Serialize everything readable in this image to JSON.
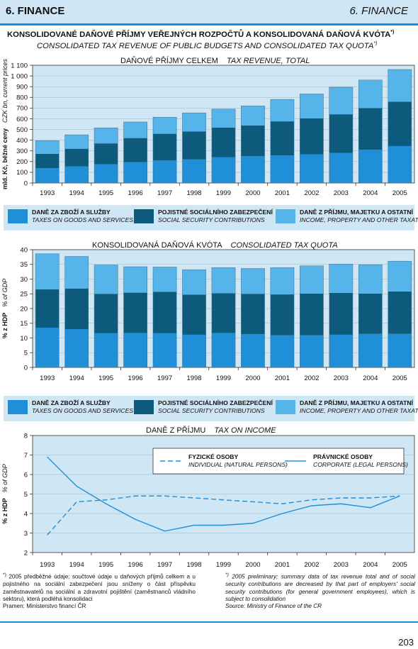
{
  "header": {
    "left": "6. FINANCE",
    "right": "6. FINANCE"
  },
  "title": {
    "cz": "KONSOLIDOVANÉ DAŇOVÉ PŘÍJMY VEŘEJNÝCH ROZPOČTŮ A KONSOLIDOVANÁ DAŇOVÁ KVÓTA",
    "en": "CONSOLIDATED TAX REVENUE OF PUBLIC BUDGETS AND CONSOLIDATED TAX QUOTA",
    "mark": "*)"
  },
  "colors": {
    "goods": "#1f8fd8",
    "social": "#0e5a7c",
    "income": "#55b5ea",
    "panel": "#cfe6f5",
    "accent": "#1a8fd8"
  },
  "legend": [
    {
      "cz": "DANĚ ZA ZBOŽÍ A SLUŽBY",
      "en": "TAXES ON GOODS AND SERVICES"
    },
    {
      "cz": "POJISTNÉ SOCIÁLNÍHO ZABEZPEČENÍ",
      "en": "SOCIAL SECURITY CONTRIBUTIONS"
    },
    {
      "cz": "DANĚ Z PŘÍJMU, MAJETKU A OSTATNÍ",
      "en": "INCOME, PROPERTY AND OTHER TAXATION"
    }
  ],
  "chart_data": [
    {
      "type": "bar",
      "stacked": true,
      "title_cz": "DAŇOVÉ PŘÍJMY CELKEM",
      "title_en": "TAX REVENUE, TOTAL",
      "ylabel_cz": "mld. Kč, běžné ceny",
      "ylabel_en": "CZK bn, current prices",
      "ylim": [
        0,
        1100
      ],
      "yticks": [
        "0",
        "100",
        "200",
        "300",
        "400",
        "500",
        "600",
        "700",
        "800",
        "900",
        "1 000",
        "1 100"
      ],
      "categories": [
        "1993",
        "1994",
        "1995",
        "1996",
        "1997",
        "1998",
        "1999",
        "2000",
        "2001",
        "2002",
        "2003",
        "2004",
        "2005"
      ],
      "series": [
        {
          "name": "DANĚ ZA ZBOŽÍ A SLUŽBY",
          "values": [
            138,
            155,
            175,
            195,
            210,
            220,
            240,
            250,
            258,
            268,
            280,
            310,
            345
          ]
        },
        {
          "name": "POJISTNÉ SOCIÁLNÍHO ZABEZPEČENÍ",
          "values": [
            135,
            165,
            195,
            225,
            250,
            262,
            278,
            288,
            318,
            336,
            362,
            390,
            415
          ]
        },
        {
          "name": "DANĚ Z PŘÍJMU, MAJETKU A OSTATNÍ",
          "values": [
            122,
            130,
            145,
            150,
            155,
            173,
            172,
            182,
            205,
            228,
            253,
            262,
            300
          ]
        }
      ]
    },
    {
      "type": "bar",
      "stacked": true,
      "title_cz": "KONSOLIDOVANÁ DAŇOVÁ KVÓTA",
      "title_en": "CONSOLIDATED TAX QUOTA",
      "ylabel_cz": "% z HDP",
      "ylabel_en": "% of GDP",
      "ylim": [
        0,
        40
      ],
      "yticks": [
        "0",
        "5",
        "10",
        "15",
        "20",
        "25",
        "30",
        "35",
        "40"
      ],
      "categories": [
        "1993",
        "1994",
        "1995",
        "1996",
        "1997",
        "1998",
        "1999",
        "2000",
        "2001",
        "2002",
        "2003",
        "2004",
        "2005"
      ],
      "series": [
        {
          "name": "DANĚ ZA ZBOŽÍ A SLUŽBY",
          "values": [
            13.5,
            13.0,
            11.6,
            11.7,
            11.6,
            11.1,
            11.7,
            11.3,
            10.9,
            10.9,
            11.1,
            11.4,
            11.4
          ]
        },
        {
          "name": "POJISTNÉ SOCIÁLNÍHO ZABEZPEČENÍ",
          "values": [
            13.0,
            13.8,
            13.4,
            13.7,
            14.1,
            13.6,
            13.5,
            13.7,
            13.9,
            14.2,
            14.2,
            13.7,
            14.4
          ]
        },
        {
          "name": "DANĚ Z PŘÍJMU, MAJETKU A OSTATNÍ",
          "values": [
            12.1,
            10.9,
            9.8,
            8.8,
            8.4,
            8.5,
            8.7,
            8.6,
            9.1,
            9.4,
            9.8,
            9.8,
            10.3
          ]
        }
      ]
    },
    {
      "type": "line",
      "title_cz": "DANĚ Z PŘÍJMU",
      "title_en": "TAX ON INCOME",
      "ylabel_cz": "% z HDP",
      "ylabel_en": "% of GDP",
      "ylim": [
        2,
        8
      ],
      "yticks": [
        "2",
        "3",
        "4",
        "5",
        "6",
        "7",
        "8"
      ],
      "x": [
        "1993",
        "1994",
        "1995",
        "1996",
        "1997",
        "1998",
        "1999",
        "2000",
        "2001",
        "2002",
        "2003",
        "2004",
        "2005"
      ],
      "series": [
        {
          "name_cz": "FYZICKÉ OSOBY",
          "name_en": "INDIVIDUAL (NATURAL PERSONS)",
          "style": "dashed",
          "values": [
            2.9,
            4.6,
            4.7,
            4.9,
            4.9,
            4.8,
            4.7,
            4.6,
            4.5,
            4.7,
            4.8,
            4.8,
            4.9
          ]
        },
        {
          "name_cz": "PRÁVNICKÉ OSOBY",
          "name_en": "CORPORATE (LEGAL PERSONS)",
          "style": "solid",
          "values": [
            6.9,
            5.4,
            4.5,
            3.7,
            3.1,
            3.4,
            3.4,
            3.5,
            4.0,
            4.4,
            4.5,
            4.3,
            4.9
          ]
        }
      ]
    }
  ],
  "footnotes": {
    "left_mark": "*)",
    "left": "2005 předběžné údaje; součtové údaje u daňových příjmů celkem a u pojistného na sociální zabezpečení jsou sníženy o část příspěvku zaměstnavatelů na sociální a zdravotní pojištění (zaměstnanců vládního sektoru), která podléhá konsolidaci",
    "left_source": "Pramen: Ministerstvo financí ČR",
    "right_mark": "*)",
    "right": "2005 preliminary; summary data of tax revenue total and of social security contributions are decreased by that part of employers' social security contributions (for general government employees), which is subject to consolidation",
    "right_source": "Source: Ministry of Finance of the CR"
  },
  "page_number": "203"
}
